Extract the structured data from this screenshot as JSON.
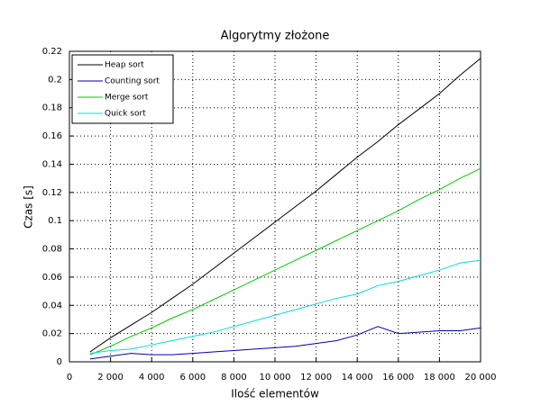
{
  "chart_data": {
    "type": "line",
    "title": "Algorytmy złożone",
    "x_label": "Ilość elementów",
    "y_label": "Czas [s]",
    "x": [
      1000,
      2000,
      3000,
      4000,
      5000,
      6000,
      7000,
      8000,
      9000,
      10000,
      11000,
      12000,
      13000,
      14000,
      15000,
      16000,
      17000,
      18000,
      19000,
      20000
    ],
    "series": [
      {
        "name": "Heap sort",
        "color": "#000000",
        "values": [
          0.007,
          0.017,
          0.026,
          0.035,
          0.045,
          0.055,
          0.066,
          0.077,
          0.088,
          0.099,
          0.11,
          0.121,
          0.133,
          0.145,
          0.156,
          0.168,
          0.179,
          0.19,
          0.203,
          0.215
        ]
      },
      {
        "name": "Counting sort",
        "color": "#0000b0",
        "values": [
          0.002,
          0.004,
          0.006,
          0.005,
          0.005,
          0.006,
          0.007,
          0.008,
          0.009,
          0.01,
          0.011,
          0.013,
          0.015,
          0.019,
          0.025,
          0.02,
          0.021,
          0.022,
          0.022,
          0.024
        ]
      },
      {
        "name": "Merge sort",
        "color": "#00cc00",
        "values": [
          0.005,
          0.011,
          0.018,
          0.024,
          0.031,
          0.037,
          0.044,
          0.051,
          0.058,
          0.065,
          0.072,
          0.079,
          0.086,
          0.093,
          0.1,
          0.107,
          0.115,
          0.122,
          0.13,
          0.137
        ]
      },
      {
        "name": "Quick sort",
        "color": "#00dddd",
        "values": [
          0.006,
          0.008,
          0.009,
          0.012,
          0.015,
          0.018,
          0.021,
          0.025,
          0.029,
          0.033,
          0.037,
          0.041,
          0.045,
          0.048,
          0.054,
          0.057,
          0.061,
          0.065,
          0.07,
          0.072
        ]
      }
    ],
    "xlim": [
      0,
      20000
    ],
    "xticks": [
      0,
      {
        "value": 2000,
        "label": "2 000"
      },
      {
        "value": 4000,
        "label": "4 000"
      },
      {
        "value": 6000,
        "label": "6 000"
      },
      {
        "value": 8000,
        "label": "8 000"
      },
      {
        "value": 10000,
        "label": "10 000"
      },
      {
        "value": 12000,
        "label": "12 000"
      },
      {
        "value": 14000,
        "label": "14 000"
      },
      {
        "value": 16000,
        "label": "16 000"
      },
      {
        "value": 18000,
        "label": "18 000"
      },
      {
        "value": 20000,
        "label": "20 000"
      }
    ],
    "ylim": [
      0,
      0.22
    ],
    "yticks": [
      0,
      0.02,
      0.04,
      0.06,
      0.08,
      0.1,
      0.12,
      0.14,
      0.16,
      0.18,
      0.2,
      0.22
    ],
    "grid": true,
    "legend_position": "upper-left"
  }
}
